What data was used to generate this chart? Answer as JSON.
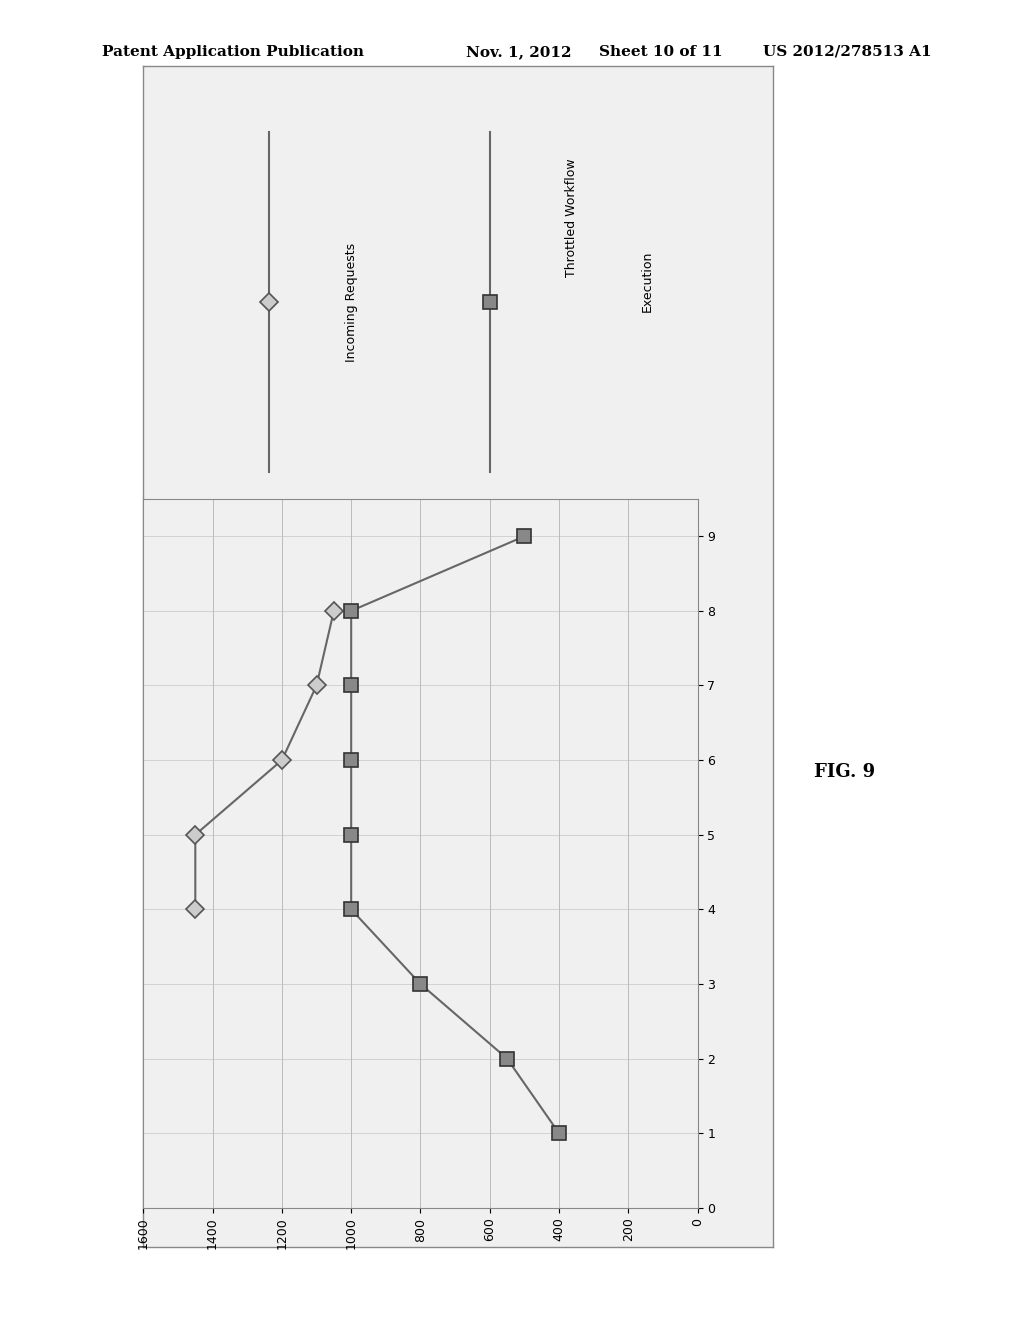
{
  "incoming_x": [
    1450,
    1450,
    1200,
    1100,
    1050
  ],
  "incoming_y": [
    4,
    5,
    6,
    7,
    8
  ],
  "throttled_x": [
    400,
    550,
    800,
    1000,
    1000,
    1000,
    1000,
    1000,
    500
  ],
  "throttled_y": [
    1,
    2,
    3,
    4,
    5,
    6,
    7,
    8,
    9
  ],
  "xlim_left": 1600,
  "xlim_right": 0,
  "ylim_bottom": 0,
  "ylim_top": 9.5,
  "xticks": [
    1600,
    1400,
    1200,
    1000,
    800,
    600,
    400,
    200,
    0
  ],
  "yticks": [
    0,
    1,
    2,
    3,
    4,
    5,
    6,
    7,
    8,
    9
  ],
  "background_color": "#f0f0f0",
  "border_color": "#888888",
  "grid_color": "#bbbbbb",
  "line_color": "#666666",
  "inc_marker_face": "#cccccc",
  "inc_marker_edge": "#555555",
  "thr_marker_face": "#888888",
  "thr_marker_edge": "#333333",
  "inc_label": "Incoming Requests",
  "thr_label1": "Throttled Workflow",
  "thr_label2": "Execution",
  "header_text": "Patent Application Publication",
  "header_date": "Nov. 1, 2012",
  "header_sheet": "Sheet 10 of 11",
  "header_patent": "US 2012/278513 A1",
  "fig_label": "FIG. 9"
}
